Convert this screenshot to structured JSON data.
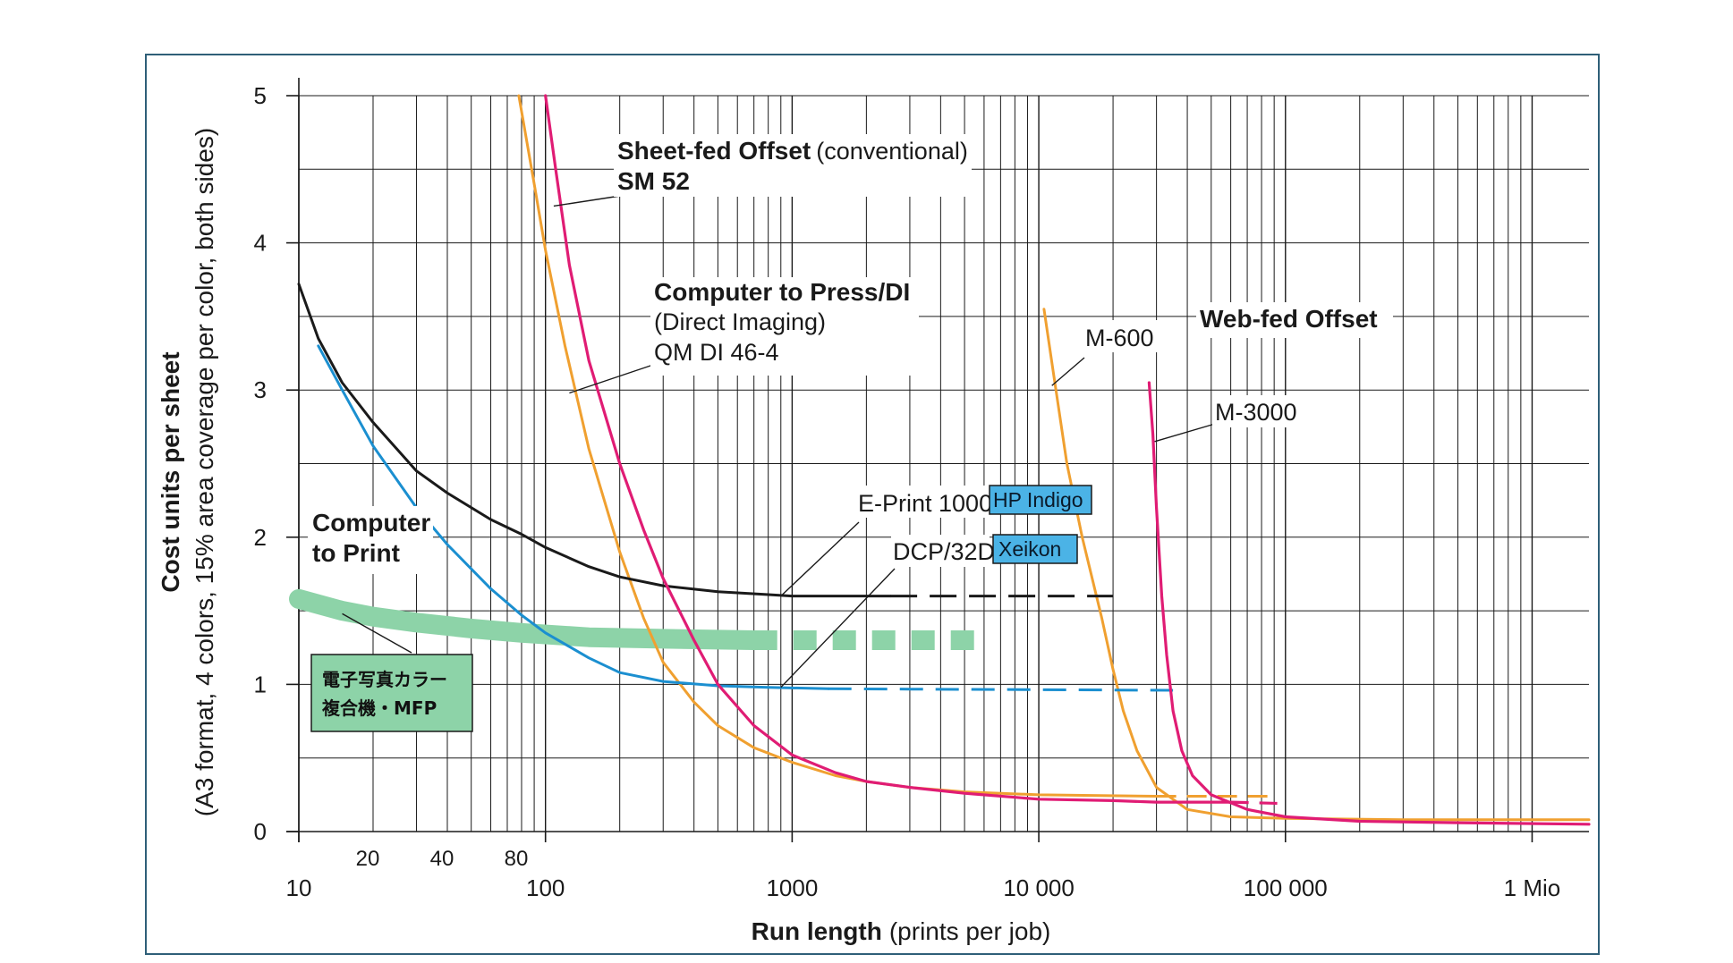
{
  "chart_data": {
    "type": "line",
    "x_scale": "log",
    "xlim": [
      10,
      1700000
    ],
    "ylim": [
      0,
      5
    ],
    "xlabel_bold": "Run length",
    "xlabel_rest": "(prints per job)",
    "ylabel_bold": "Cost units per sheet",
    "ylabel_rest": "(A3 format, 4 colors, 15% area coverage per color, both sides)",
    "x_ticks_major": [
      {
        "value": 10,
        "label": "10"
      },
      {
        "value": 100,
        "label": "100"
      },
      {
        "value": 1000,
        "label": "1000"
      },
      {
        "value": 10000,
        "label": "10 000"
      },
      {
        "value": 100000,
        "label": "100 000"
      },
      {
        "value": 1000000,
        "label": "1 Mio"
      }
    ],
    "x_ticks_minor": [
      {
        "value": 20,
        "label": "20"
      },
      {
        "value": 40,
        "label": "40"
      },
      {
        "value": 80,
        "label": "80"
      }
    ],
    "y_ticks": [
      {
        "value": 0,
        "label": "0"
      },
      {
        "value": 1,
        "label": "1"
      },
      {
        "value": 2,
        "label": "2"
      },
      {
        "value": 3,
        "label": "3"
      },
      {
        "value": 4,
        "label": "4"
      },
      {
        "value": 5,
        "label": "5"
      }
    ],
    "grid": true,
    "colors": {
      "hp_indigo": "#1a1a1a",
      "xeikon": "#1b8fd0",
      "mfp": "#8dd3a8",
      "sheetfed": "#e01c74",
      "di": "#f0a030",
      "m600": "#f0a030",
      "m3000": "#e01c74",
      "frame": "#2f5f78",
      "badge": "#4bb3e6"
    },
    "series": [
      {
        "key": "hp_indigo",
        "points": [
          [
            10,
            3.72
          ],
          [
            12,
            3.35
          ],
          [
            15,
            3.05
          ],
          [
            20,
            2.78
          ],
          [
            30,
            2.45
          ],
          [
            40,
            2.3
          ],
          [
            60,
            2.12
          ],
          [
            80,
            2.02
          ],
          [
            100,
            1.93
          ],
          [
            150,
            1.8
          ],
          [
            200,
            1.73
          ],
          [
            300,
            1.67
          ],
          [
            500,
            1.63
          ],
          [
            800,
            1.61
          ],
          [
            1000,
            1.6
          ],
          [
            2500,
            1.6
          ]
        ],
        "dashed_points": [
          [
            2500,
            1.6
          ],
          [
            20000,
            1.6
          ]
        ]
      },
      {
        "key": "xeikon",
        "points": [
          [
            12,
            3.3
          ],
          [
            15,
            3.0
          ],
          [
            20,
            2.62
          ],
          [
            30,
            2.2
          ],
          [
            40,
            1.95
          ],
          [
            60,
            1.65
          ],
          [
            80,
            1.47
          ],
          [
            100,
            1.35
          ],
          [
            150,
            1.18
          ],
          [
            200,
            1.08
          ],
          [
            300,
            1.02
          ],
          [
            500,
            0.99
          ],
          [
            800,
            0.98
          ],
          [
            1400,
            0.97
          ]
        ],
        "dashed_points": [
          [
            1400,
            0.97
          ],
          [
            35000,
            0.96
          ]
        ]
      },
      {
        "key": "mfp",
        "points": [
          [
            10,
            1.58
          ],
          [
            15,
            1.5
          ],
          [
            20,
            1.46
          ],
          [
            30,
            1.42
          ],
          [
            50,
            1.38
          ],
          [
            80,
            1.35
          ],
          [
            150,
            1.32
          ],
          [
            300,
            1.31
          ],
          [
            700,
            1.3
          ]
        ],
        "dashed_points": [
          [
            700,
            1.3
          ],
          [
            6200,
            1.3
          ]
        ]
      },
      {
        "key": "sheetfed",
        "points": [
          [
            100,
            5.0
          ],
          [
            110,
            4.5
          ],
          [
            125,
            3.85
          ],
          [
            150,
            3.2
          ],
          [
            200,
            2.5
          ],
          [
            250,
            2.05
          ],
          [
            300,
            1.72
          ],
          [
            400,
            1.3
          ],
          [
            500,
            1.0
          ],
          [
            700,
            0.72
          ],
          [
            1000,
            0.52
          ],
          [
            1500,
            0.4
          ],
          [
            2000,
            0.34
          ],
          [
            3000,
            0.3
          ],
          [
            5000,
            0.26
          ],
          [
            10000,
            0.22
          ],
          [
            20000,
            0.21
          ],
          [
            30000,
            0.2
          ],
          [
            60000,
            0.2
          ]
        ],
        "dashed_points": [
          [
            60000,
            0.2
          ],
          [
            100000,
            0.19
          ]
        ]
      },
      {
        "key": "di",
        "points": [
          [
            78,
            5.0
          ],
          [
            90,
            4.4
          ],
          [
            100,
            3.95
          ],
          [
            120,
            3.3
          ],
          [
            150,
            2.6
          ],
          [
            200,
            1.9
          ],
          [
            250,
            1.45
          ],
          [
            300,
            1.15
          ],
          [
            400,
            0.88
          ],
          [
            500,
            0.72
          ],
          [
            700,
            0.57
          ],
          [
            1000,
            0.47
          ],
          [
            1500,
            0.38
          ],
          [
            2000,
            0.34
          ],
          [
            3000,
            0.3
          ],
          [
            5000,
            0.27
          ],
          [
            10000,
            0.25
          ],
          [
            30000,
            0.24
          ]
        ],
        "dashed_points": [
          [
            30000,
            0.24
          ],
          [
            90000,
            0.24
          ]
        ]
      },
      {
        "key": "m600",
        "points": [
          [
            10500,
            3.55
          ],
          [
            11500,
            3.1
          ],
          [
            13000,
            2.5
          ],
          [
            15000,
            2.0
          ],
          [
            18000,
            1.45
          ],
          [
            20000,
            1.1
          ],
          [
            22000,
            0.82
          ],
          [
            25000,
            0.55
          ],
          [
            30000,
            0.3
          ],
          [
            40000,
            0.15
          ],
          [
            60000,
            0.1
          ],
          [
            100000,
            0.09
          ],
          [
            300000,
            0.08
          ],
          [
            1700000,
            0.08
          ]
        ],
        "dashed_points": []
      },
      {
        "key": "m3000",
        "points": [
          [
            28000,
            3.05
          ],
          [
            29000,
            2.7
          ],
          [
            30000,
            2.2
          ],
          [
            31500,
            1.6
          ],
          [
            33000,
            1.2
          ],
          [
            35000,
            0.82
          ],
          [
            38000,
            0.55
          ],
          [
            42000,
            0.38
          ],
          [
            50000,
            0.25
          ],
          [
            70000,
            0.15
          ],
          [
            100000,
            0.1
          ],
          [
            200000,
            0.07
          ],
          [
            500000,
            0.06
          ],
          [
            1700000,
            0.05
          ]
        ],
        "dashed_points": []
      }
    ],
    "annotations": {
      "sheetfed_bold": "Sheet-fed Offset",
      "sheetfed_rest": "(conventional)",
      "sm52": "SM 52",
      "ctp_di_bold": "Computer to Press/DI",
      "di_line2": "(Direct Imaging)",
      "di_line3": "QM DI 46-4",
      "webfed": "Web-fed Offset",
      "m600": "M-600",
      "m3000": "M-3000",
      "eprint": "E-Print 1000",
      "hp_indigo": "HP Indigo",
      "dcp": "DCP/32D",
      "xeikon": "Xeikon",
      "ctprint_line1": "Computer",
      "ctprint_line2": "to Print",
      "mfp_line1": "電子写真カラー",
      "mfp_line2": "複合機・MFP"
    }
  }
}
